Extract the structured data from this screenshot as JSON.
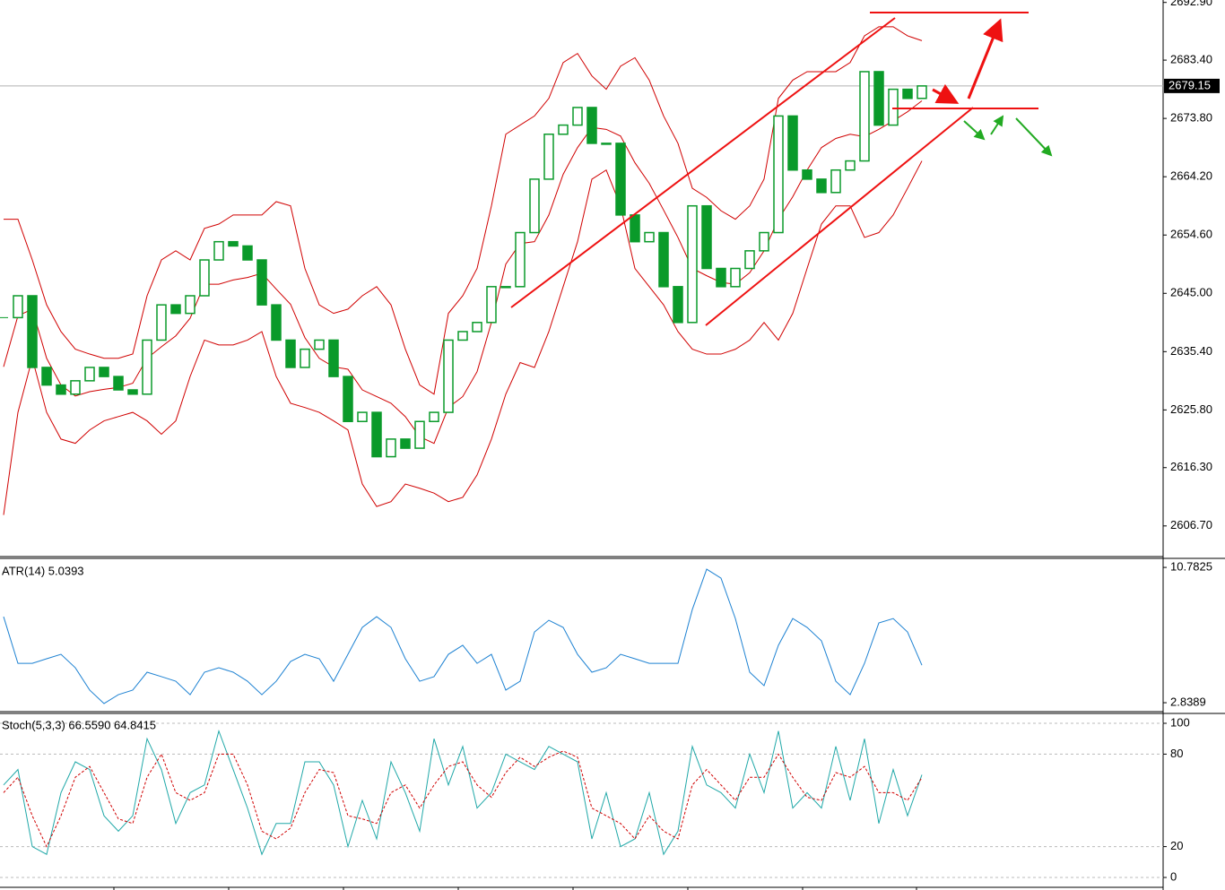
{
  "chart_data": [
    {
      "type": "candlestick",
      "color": "#0a9a2a",
      "values": [
        2641.0,
        2644.6,
        2632.8,
        2629.9,
        2628.4,
        2630.6,
        2632.8,
        2631.3,
        2629.1,
        2628.4,
        2637.3,
        2643.1,
        2641.7,
        2644.6,
        2650.5,
        2653.5,
        2652.8,
        2650.5,
        2643.1,
        2637.3,
        2632.8,
        2635.8,
        2637.3,
        2631.3,
        2623.9,
        2625.4,
        2618.1,
        2621.0,
        2619.5,
        2623.9,
        2625.4,
        2637.3,
        2638.7,
        2640.2,
        2646.1,
        2646.1,
        2655.0,
        2663.8,
        2671.2,
        2672.7,
        2675.6,
        2669.7,
        2669.7,
        2657.9,
        2653.5,
        2655.0,
        2646.1,
        2640.2,
        2659.4,
        2649.1,
        2646.1,
        2649.1,
        2652.0,
        2655.0,
        2674.2,
        2665.3,
        2663.8,
        2661.6,
        2665.3,
        2666.8,
        2681.5,
        2672.7,
        2678.6,
        2677.1,
        2679.15
      ],
      "series": [
        {
          "color": "#d00000",
          "values": [
            2657.2,
            2657.2,
            2650.5,
            2643.1,
            2638.7,
            2635.8,
            2635.0,
            2634.3,
            2634.3,
            2635.0,
            2644.6,
            2650.5,
            2652.0,
            2650.5,
            2655.7,
            2656.4,
            2657.9,
            2657.9,
            2657.9,
            2660.1,
            2659.4,
            2649.1,
            2643.1,
            2641.7,
            2642.4,
            2644.6,
            2646.1,
            2643.1,
            2635.8,
            2629.9,
            2628.4,
            2641.7,
            2644.6,
            2649.1,
            2659.4,
            2671.2,
            2672.7,
            2674.2,
            2677.1,
            2683.0,
            2684.5,
            2680.8,
            2678.6,
            2682.4,
            2683.8,
            2680.1,
            2674.2,
            2669.7,
            2662.3,
            2660.8,
            2658.6,
            2657.2,
            2659.4,
            2663.8,
            2677.1,
            2680.1,
            2681.5,
            2681.5,
            2681.5,
            2683.0,
            2687.4,
            2688.9,
            2688.9,
            2687.4,
            2686.6
          ]
        },
        {
          "color": "#d00000",
          "values": [
            2632.9,
            2641.3,
            2642.4,
            2634.3,
            2629.9,
            2628.1,
            2628.8,
            2629.2,
            2629.5,
            2630.2,
            2634.3,
            2636.2,
            2638.0,
            2640.9,
            2646.5,
            2646.5,
            2647.2,
            2647.6,
            2648.3,
            2645.7,
            2643.2,
            2637.7,
            2634.3,
            2632.9,
            2632.5,
            2629.1,
            2628.0,
            2626.9,
            2624.7,
            2621.4,
            2620.3,
            2626.2,
            2628.0,
            2632.1,
            2640.2,
            2649.8,
            2653.2,
            2653.5,
            2657.9,
            2664.6,
            2669.0,
            2672.3,
            2672.0,
            2670.9,
            2666.5,
            2663.1,
            2658.7,
            2654.2,
            2649.1,
            2647.9,
            2646.8,
            2646.5,
            2648.4,
            2652.0,
            2657.2,
            2660.9,
            2665.3,
            2669.0,
            2670.5,
            2671.2,
            2670.8,
            2672.0,
            2673.4,
            2674.9,
            2676.7
          ]
        },
        {
          "color": "#d00000",
          "values": [
            2608.5,
            2625.4,
            2634.3,
            2625.4,
            2621.0,
            2620.3,
            2622.5,
            2624.0,
            2624.7,
            2625.4,
            2624.0,
            2621.8,
            2624.0,
            2631.3,
            2637.3,
            2636.5,
            2636.5,
            2637.3,
            2638.7,
            2631.3,
            2626.9,
            2626.2,
            2625.4,
            2624.0,
            2622.5,
            2613.6,
            2609.9,
            2610.7,
            2613.6,
            2612.9,
            2612.1,
            2610.7,
            2611.4,
            2615.1,
            2621.0,
            2628.4,
            2633.6,
            2632.8,
            2638.7,
            2646.1,
            2653.5,
            2663.8,
            2665.3,
            2659.4,
            2649.1,
            2646.1,
            2643.1,
            2638.7,
            2635.8,
            2635.0,
            2635.0,
            2635.8,
            2637.3,
            2640.2,
            2637.3,
            2641.7,
            2649.1,
            2656.4,
            2659.4,
            2659.4,
            2654.2,
            2655.0,
            2657.9,
            2662.3,
            2666.8
          ]
        }
      ],
      "current_price": 2679.15,
      "ylim": [
        2601.8,
        2693.3
      ],
      "yticks": [
        {
          "value": 2692.9,
          "label": "2692.90"
        },
        {
          "value": 2683.4,
          "label": "2683.40"
        },
        {
          "value": 2673.8,
          "label": "2673.80"
        },
        {
          "value": 2664.2,
          "label": "2664.20"
        },
        {
          "value": 2654.6,
          "label": "2654.60"
        },
        {
          "value": 2645,
          "label": "2645.00"
        },
        {
          "value": 2635.4,
          "label": "2635.40"
        },
        {
          "value": 2625.8,
          "label": "2625.80"
        },
        {
          "value": 2616.3,
          "label": "2616.30"
        },
        {
          "value": 2606.7,
          "label": "2606.70"
        }
      ]
    },
    {
      "type": "line",
      "title": "ATR(14) 5.0393",
      "series": [
        {
          "color": "#1e82d2",
          "values": [
            7.89,
            5.15,
            5.15,
            5.42,
            5.68,
            4.89,
            3.58,
            2.79,
            3.31,
            3.58,
            4.63,
            4.37,
            4.1,
            3.31,
            4.63,
            4.89,
            4.63,
            4.1,
            3.31,
            4.1,
            5.26,
            5.68,
            5.42,
            4.1,
            5.68,
            7.26,
            7.89,
            7.26,
            5.42,
            4.1,
            4.37,
            5.68,
            6.21,
            5.15,
            5.68,
            3.58,
            4.1,
            6.99,
            7.68,
            7.26,
            5.68,
            4.63,
            4.89,
            5.68,
            5.42,
            5.15,
            5.15,
            5.15,
            8.31,
            10.68,
            10.15,
            7.78,
            4.63,
            3.84,
            6.21,
            7.78,
            7.26,
            6.47,
            4.1,
            3.31,
            5.15,
            7.52,
            7.78,
            6.99,
            5.04
          ]
        }
      ],
      "ylim": [
        2.42,
        11.26
      ],
      "yticks": [
        10.7825,
        2.8389
      ]
    },
    {
      "type": "line",
      "title": "Stoch(5,3,3) 66.5590 64.8415",
      "grid": true,
      "series": [
        {
          "color": "#20a8a8",
          "values": [
            60,
            70,
            20,
            15,
            55,
            75,
            70,
            40,
            30,
            40,
            90,
            70,
            35,
            55,
            60,
            95,
            70,
            45,
            15,
            35,
            35,
            75,
            75,
            60,
            20,
            50,
            25,
            75,
            55,
            30,
            90,
            60,
            85,
            45,
            55,
            80,
            75,
            70,
            85,
            80,
            75,
            25,
            55,
            20,
            25,
            55,
            15,
            30,
            85,
            60,
            55,
            45,
            80,
            55,
            95,
            45,
            55,
            45,
            85,
            50,
            90,
            35,
            70,
            40,
            66.6
          ]
        },
        {
          "color": "#d00000",
          "dashed": true,
          "values": [
            55,
            65,
            40,
            20,
            40,
            65,
            72,
            55,
            38,
            35,
            65,
            80,
            55,
            50,
            55,
            80,
            80,
            60,
            30,
            25,
            32,
            55,
            70,
            68,
            40,
            38,
            35,
            55,
            60,
            45,
            60,
            72,
            75,
            60,
            52,
            68,
            78,
            72,
            78,
            82,
            78,
            45,
            40,
            35,
            25,
            40,
            30,
            25,
            60,
            70,
            60,
            50,
            65,
            65,
            80,
            65,
            52,
            50,
            68,
            65,
            72,
            55,
            55,
            50,
            64.8
          ]
        }
      ],
      "ylim": [
        -6.4,
        106.4
      ],
      "yticks": [
        100,
        80,
        20,
        0
      ]
    }
  ]
}
